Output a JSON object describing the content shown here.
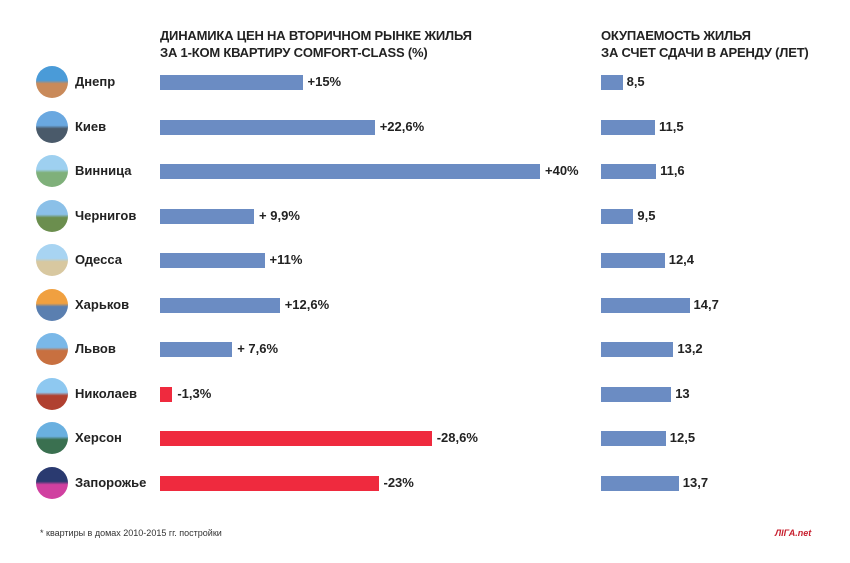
{
  "chart_data": [
    {
      "type": "bar",
      "orientation": "horizontal",
      "title": "ДИНАМИКА ЦЕН НА ВТОРИЧНОМ РЫНКЕ ЖИЛЬЯ ЗА 1-КОМ КВАРТИРУ COMFORT-CLASS (%)",
      "title_lines": [
        "ДИНАМИКА ЦЕН НА ВТОРИЧНОМ РЫНКЕ ЖИЛЬЯ",
        "ЗА 1-КОМ КВАРТИРУ COMFORT-CLASS (%)"
      ],
      "categories": [
        "Днепр",
        "Киев",
        "Винница",
        "Чернигов",
        "Одесса",
        "Харьков",
        "Львов",
        "Николаев",
        "Херсон",
        "Запорожье"
      ],
      "values": [
        15,
        22.6,
        40,
        9.9,
        11,
        12.6,
        7.6,
        -1.3,
        -28.6,
        -23
      ],
      "data_labels": [
        "+15%",
        "+22,6%",
        "+40%",
        "+ 9,9%",
        "+11%",
        "+12,6%",
        "+ 7,6%",
        "-1,3%",
        "-28,6%",
        "-23%"
      ],
      "colors": {
        "positive": "#6b8cc3",
        "negative": "#ef2a3e"
      }
    },
    {
      "type": "bar",
      "orientation": "horizontal",
      "title": "ОКУПАЕМОСТЬ ЖИЛЬЯ ЗА СЧЕТ СДАЧИ В АРЕНДУ (ЛЕТ)",
      "title_lines": [
        "ОКУПАЕМОСТЬ ЖИЛЬЯ",
        "ЗА СЧЕТ СДАЧИ В АРЕНДУ (ЛЕТ)"
      ],
      "categories": [
        "Днепр",
        "Киев",
        "Винница",
        "Чернигов",
        "Одесса",
        "Харьков",
        "Львов",
        "Николаев",
        "Херсон",
        "Запорожье"
      ],
      "values": [
        8.5,
        11.5,
        11.6,
        9.5,
        12.4,
        14.7,
        13.2,
        13,
        12.5,
        13.7
      ],
      "data_labels": [
        "8,5",
        "11,5",
        "11,6",
        "9,5",
        "12,4",
        "14,7",
        "13,2",
        "13",
        "12,5",
        "13,7"
      ],
      "colors": {
        "bar": "#6b8cc3"
      }
    }
  ],
  "footnote": "* квартиры в домах 2010-2015 гг. постройки",
  "logo": "ЛIГА.net"
}
